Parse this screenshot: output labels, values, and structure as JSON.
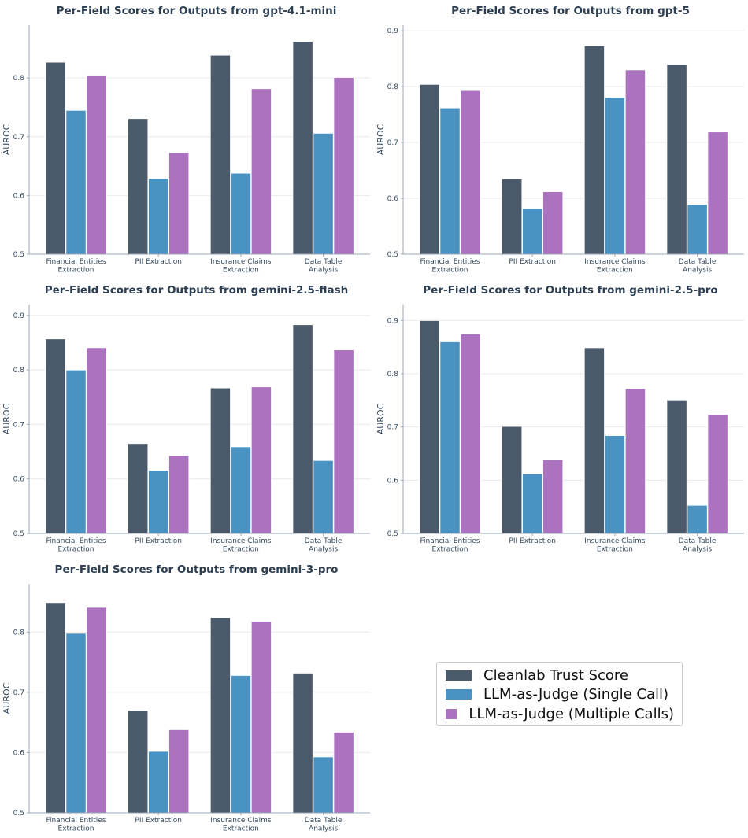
{
  "colors": {
    "cleanlab": "#4a5a6a",
    "single": "#4a92c2",
    "multiple": "#ab72c0"
  },
  "legend": {
    "position": "center-right (empty panel)",
    "items": [
      {
        "label": "Cleanlab Trust Score",
        "color": "#4a5a6a"
      },
      {
        "label": "LLM-as-Judge (Single Call)",
        "color": "#4a92c2"
      },
      {
        "label": "LLM-as-Judge (Multiple Calls)",
        "color": "#ab72c0"
      }
    ]
  },
  "chart_data": [
    {
      "type": "bar",
      "title": "Per-Field Scores for Outputs from gpt-4.1-mini",
      "ylabel": "AUROC",
      "ylim": [
        0.5,
        0.89
      ],
      "yticks": [
        "0.5",
        "0.6",
        "0.7",
        "0.8"
      ],
      "grid": true,
      "categories": [
        "Financial Entities\nExtraction",
        "PII Extraction",
        "Insurance Claims\nExtraction",
        "Data Table\nAnalysis"
      ],
      "series": [
        {
          "name": "Cleanlab Trust Score",
          "values": [
            0.827,
            0.731,
            0.839,
            0.862
          ]
        },
        {
          "name": "LLM-as-Judge (Single Call)",
          "values": [
            0.745,
            0.629,
            0.638,
            0.706
          ]
        },
        {
          "name": "LLM-as-Judge (Multiple Calls)",
          "values": [
            0.805,
            0.673,
            0.782,
            0.801
          ]
        }
      ]
    },
    {
      "type": "bar",
      "title": "Per-Field Scores for Outputs from gpt-5",
      "ylabel": "AUROC",
      "ylim": [
        0.5,
        0.91
      ],
      "yticks": [
        "0.5",
        "0.6",
        "0.7",
        "0.8",
        "0.9"
      ],
      "grid": true,
      "categories": [
        "Financial Entities\nExtraction",
        "PII Extraction",
        "Insurance Claims\nExtraction",
        "Data Table\nAnalysis"
      ],
      "series": [
        {
          "name": "Cleanlab Trust Score",
          "values": [
            0.804,
            0.635,
            0.873,
            0.84
          ]
        },
        {
          "name": "LLM-as-Judge (Single Call)",
          "values": [
            0.762,
            0.582,
            0.781,
            0.589
          ]
        },
        {
          "name": "LLM-as-Judge (Multiple Calls)",
          "values": [
            0.793,
            0.612,
            0.83,
            0.719
          ]
        }
      ]
    },
    {
      "type": "bar",
      "title": "Per-Field Scores for Outputs from gemini-2.5-flash",
      "ylabel": "AUROC",
      "ylim": [
        0.5,
        0.92
      ],
      "yticks": [
        "0.5",
        "0.6",
        "0.7",
        "0.8",
        "0.9"
      ],
      "grid": true,
      "categories": [
        "Financial Entities\nExtraction",
        "PII Extraction",
        "Insurance Claims\nExtraction",
        "Data Table\nAnalysis"
      ],
      "series": [
        {
          "name": "Cleanlab Trust Score",
          "values": [
            0.857,
            0.665,
            0.767,
            0.883
          ]
        },
        {
          "name": "LLM-as-Judge (Single Call)",
          "values": [
            0.8,
            0.616,
            0.659,
            0.634
          ]
        },
        {
          "name": "LLM-as-Judge (Multiple Calls)",
          "values": [
            0.841,
            0.643,
            0.769,
            0.837
          ]
        }
      ]
    },
    {
      "type": "bar",
      "title": "Per-Field Scores for Outputs from gemini-2.5-pro",
      "ylabel": "AUROC",
      "ylim": [
        0.5,
        0.93
      ],
      "yticks": [
        "0.5",
        "0.6",
        "0.7",
        "0.8",
        "0.9"
      ],
      "grid": true,
      "categories": [
        "Financial Entities\nExtraction",
        "PII Extraction",
        "Insurance Claims\nExtraction",
        "Data Table\nAnalysis"
      ],
      "series": [
        {
          "name": "Cleanlab Trust Score",
          "values": [
            0.9,
            0.701,
            0.849,
            0.751
          ]
        },
        {
          "name": "LLM-as-Judge (Single Call)",
          "values": [
            0.86,
            0.612,
            0.684,
            0.553
          ]
        },
        {
          "name": "LLM-as-Judge (Multiple Calls)",
          "values": [
            0.875,
            0.639,
            0.772,
            0.723
          ]
        }
      ]
    },
    {
      "type": "bar",
      "title": "Per-Field Scores for Outputs from gemini-3-pro",
      "ylabel": "AUROC",
      "ylim": [
        0.5,
        0.88
      ],
      "yticks": [
        "0.5",
        "0.6",
        "0.7",
        "0.8"
      ],
      "grid": true,
      "categories": [
        "Financial Entities\nExtraction",
        "PII Extraction",
        "Insurance Claims\nExtraction",
        "Data Table\nAnalysis"
      ],
      "series": [
        {
          "name": "Cleanlab Trust Score",
          "values": [
            0.849,
            0.67,
            0.824,
            0.732
          ]
        },
        {
          "name": "LLM-as-Judge (Single Call)",
          "values": [
            0.798,
            0.602,
            0.728,
            0.593
          ]
        },
        {
          "name": "LLM-as-Judge (Multiple Calls)",
          "values": [
            0.841,
            0.638,
            0.818,
            0.634
          ]
        }
      ]
    }
  ]
}
